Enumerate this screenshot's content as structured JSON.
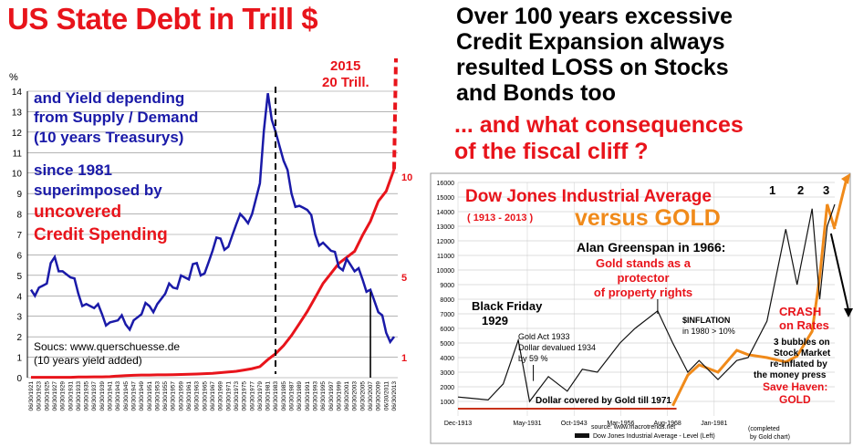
{
  "left_title": "US State Debt in Trill $",
  "right_title": [
    "Over 100 years excessive",
    "Credit Expansion always",
    "resulted LOSS on Stocks",
    "and Bonds too"
  ],
  "right_subtitle": [
    "... and what consequences",
    "of the fiscal cliff ?"
  ],
  "colors": {
    "yield": "#1a1aa8",
    "debt": "#e8141b",
    "dow": "#111111",
    "gold": "#f08a1a",
    "accent_red": "#e8141b"
  },
  "chart_data": [
    {
      "type": "line",
      "title": "US State Debt in Trill $",
      "ylabel": "%",
      "ylim": [
        0,
        14
      ],
      "left_ticks": [
        "0",
        "1",
        "2",
        "3",
        "4",
        "5",
        "6",
        "7",
        "8",
        "9",
        "10",
        "11",
        "12",
        "13",
        "14"
      ],
      "right_ticks": [
        "1",
        "5",
        "10"
      ],
      "x": [
        "06/30/1921",
        "06/30/1923",
        "06/30/1925",
        "06/30/1927",
        "06/30/1929",
        "06/30/1931",
        "06/30/1933",
        "06/30/1935",
        "06/30/1937",
        "06/30/1939",
        "06/30/1941",
        "06/30/1943",
        "06/30/1945",
        "06/30/1947",
        "06/30/1949",
        "06/30/1951",
        "06/30/1953",
        "06/30/1955",
        "06/30/1957",
        "06/30/1959",
        "06/30/1961",
        "06/30/1963",
        "06/30/1965",
        "06/30/1967",
        "06/30/1969",
        "06/30/1971",
        "06/30/1973",
        "06/30/1975",
        "06/30/1977",
        "06/30/1979",
        "06/30/1981",
        "06/30/1983",
        "06/30/1985",
        "06/30/1987",
        "06/30/1989",
        "06/30/1991",
        "06/30/1993",
        "06/30/1995",
        "06/30/1997",
        "06/30/1999",
        "06/30/2001",
        "06/30/2003",
        "06/30/2005",
        "06/30/2007",
        "06/30/2009",
        "06/30/2011",
        "06/30/2013"
      ],
      "series": [
        {
          "name": "yield",
          "values": [
            4.3,
            4.4,
            4.6,
            5.9,
            5.2,
            4.9,
            4.1,
            3.6,
            3.4,
            3.1,
            2.7,
            2.8,
            2.6,
            2.8,
            3.1,
            3.5,
            3.6,
            4.1,
            4.4,
            5.0,
            4.8,
            5.6,
            5.1,
            6.2,
            6.8,
            6.4,
            7.5,
            7.8,
            8.0,
            9.5,
            13.9,
            12.0,
            10.6,
            9.0,
            8.4,
            8.2,
            7.0,
            6.6,
            6.2,
            5.4,
            5.8,
            5.2,
            4.8,
            4.3,
            3.2,
            2.2,
            2.0
          ]
        },
        {
          "name": "debt",
          "values": [
            0.02,
            0.02,
            0.02,
            0.02,
            0.02,
            0.02,
            0.03,
            0.03,
            0.04,
            0.04,
            0.05,
            0.08,
            0.1,
            0.12,
            0.13,
            0.13,
            0.14,
            0.14,
            0.15,
            0.16,
            0.17,
            0.18,
            0.2,
            0.22,
            0.25,
            0.28,
            0.32,
            0.38,
            0.45,
            0.55,
            0.9,
            1.2,
            1.6,
            2.1,
            2.7,
            3.3,
            4.0,
            4.7,
            5.2,
            5.7,
            6.0,
            6.3,
            7.1,
            7.8,
            8.8,
            9.3,
            10.4
          ]
        }
      ],
      "annotations": [
        "2015",
        "20 Trill.",
        "and Yield depending",
        "from Supply / Demand",
        "(10 years Treasurys)",
        "since 1981",
        "superimposed by",
        "uncovered",
        "Credit Spending",
        "Soucs: www.querschuesse.de",
        "(10 years yield added)"
      ]
    },
    {
      "type": "line",
      "title": "Dow Jones Industrial Average",
      "subtitle": "( 1913 - 2013 )",
      "title2": "versus GOLD",
      "yticks": [
        "1000",
        "2000",
        "3000",
        "4000",
        "5000",
        "6000",
        "7000",
        "8000",
        "9000",
        "10000",
        "11000",
        "12000",
        "13000",
        "14000",
        "15000",
        "16000"
      ],
      "ylim": [
        0,
        16000
      ],
      "xticks": [
        "Dec-1913",
        "May-1931",
        "Oct-1943",
        "Mar-1956",
        "Aug-1968",
        "Jan-1981"
      ],
      "x": [
        1913,
        1921,
        1925,
        1929,
        1932,
        1937,
        1942,
        1946,
        1950,
        1956,
        1960,
        1966,
        1970,
        1974,
        1977,
        1982,
        1987,
        1990,
        1995,
        2000,
        2003,
        2007,
        2009,
        2011,
        2013
      ],
      "series": [
        {
          "name": "Dow Jones Industrial Average - Level (Left)",
          "values": [
            1300,
            1100,
            2200,
            5200,
            1000,
            2700,
            1700,
            3200,
            3000,
            5000,
            6000,
            7200,
            5000,
            3000,
            3800,
            2500,
            3800,
            4000,
            6500,
            12800,
            9000,
            14200,
            8000,
            13000,
            14500
          ]
        },
        {
          "name": "Gold",
          "values": [
            500,
            500,
            500,
            500,
            500,
            500,
            500,
            500,
            500,
            500,
            500,
            500,
            700,
            2800,
            3500,
            3000,
            4500,
            4200,
            4000,
            3700,
            4100,
            5800,
            9500,
            14500,
            12800
          ]
        }
      ],
      "annotations": [
        "Alan Greenspan in 1966:",
        "Gold stands as a",
        "protector",
        "of property rights",
        "Black Friday",
        "1929",
        "Gold Act 1933",
        "Dollar devalued 1934",
        "by 59 %",
        "$INFLATION",
        "in 1980 > 10%",
        "CRASH",
        "on Rates",
        "3 bubbles on",
        "Stock Market",
        "re-inflated by",
        "the money press",
        "Save Haven:",
        "GOLD",
        "Dollar covered by Gold till 1971",
        "1",
        "2",
        "3",
        "source: www.macrotrends.net",
        "(completed",
        "by Gold chart)"
      ]
    }
  ]
}
